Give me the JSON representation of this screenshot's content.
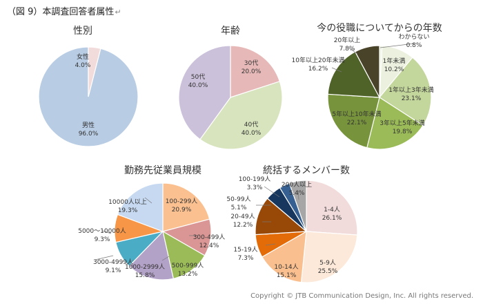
{
  "header": {
    "title": "（図 9）本調査回答者属性",
    "return_mark": "↵"
  },
  "footer": {
    "copyright": "Copyright © JTB Communication Design, Inc. All rights reserved."
  },
  "chart_data": [
    {
      "id": "gender",
      "type": "pie",
      "title": "性別",
      "slices": [
        {
          "label": "男性",
          "value": 96.0,
          "display": "96.0%",
          "color": "#b8cce4"
        },
        {
          "label": "女性",
          "value": 4.0,
          "display": "4.0%",
          "color": "#f2dcdb"
        }
      ]
    },
    {
      "id": "age",
      "type": "pie",
      "title": "年齢",
      "slices": [
        {
          "label": "30代",
          "value": 20.0,
          "display": "20.0%",
          "color": "#e6b9b8"
        },
        {
          "label": "40代",
          "value": 40.0,
          "display": "40.0%",
          "color": "#d7e4bd"
        },
        {
          "label": "50代",
          "value": 40.0,
          "display": "40.0%",
          "color": "#ccc1da"
        }
      ]
    },
    {
      "id": "tenure",
      "type": "pie",
      "title": "今の役職についてからの年数",
      "slices": [
        {
          "label": "わからない",
          "value": 0.8,
          "display": "0.8%",
          "color": "#ebf1de"
        },
        {
          "label": "1年未満",
          "value": 10.2,
          "display": "10.2%",
          "color": "#ebf1de"
        },
        {
          "label": "1年以上3年未満",
          "value": 23.1,
          "display": "23.1%",
          "color": "#c3d69b"
        },
        {
          "label": "3年以上5年未満",
          "value": 19.8,
          "display": "19.8%",
          "color": "#9bbb59"
        },
        {
          "label": "5年以上10年未満",
          "value": 22.1,
          "display": "22.1%",
          "color": "#77933c"
        },
        {
          "label": "10年以上20年未満",
          "value": 16.2,
          "display": "16.2%",
          "color": "#4f6228"
        },
        {
          "label": "20年以上",
          "value": 7.8,
          "display": "7.8%",
          "color": "#494429"
        }
      ]
    },
    {
      "id": "company_size",
      "type": "pie",
      "title": "勤務先従業員規模",
      "slices": [
        {
          "label": "100-299人",
          "value": 20.9,
          "display": "20.9%",
          "color": "#fac090"
        },
        {
          "label": "300-499人",
          "value": 12.4,
          "display": "12.4%",
          "color": "#d99694"
        },
        {
          "label": "500-999人",
          "value": 13.2,
          "display": "13.2%",
          "color": "#9bbb59"
        },
        {
          "label": "1000-2999人",
          "value": 15.8,
          "display": "15.8%",
          "color": "#b3a2c7"
        },
        {
          "label": "3000-4999人",
          "value": 9.1,
          "display": "9.1%",
          "color": "#4bacc6"
        },
        {
          "label": "5000～10000人",
          "value": 9.3,
          "display": "9.3%",
          "color": "#f79646"
        },
        {
          "label": "10000人以上",
          "value": 19.3,
          "display": "19.3%",
          "color": "#c6d9f1"
        }
      ]
    },
    {
      "id": "members",
      "type": "pie",
      "title": "統括するメンバー数",
      "slices": [
        {
          "label": "1-4人",
          "value": 26.1,
          "display": "26.1%",
          "color": "#f2dcdb"
        },
        {
          "label": "5-9人",
          "value": 25.5,
          "display": "25.5%",
          "color": "#fde9d9"
        },
        {
          "label": "10-14人",
          "value": 15.1,
          "display": "15.1%",
          "color": "#fabf8f"
        },
        {
          "label": "15-19人",
          "value": 7.3,
          "display": "7.3%",
          "color": "#e36c09"
        },
        {
          "label": "20-49人",
          "value": 12.2,
          "display": "12.2%",
          "color": "#984807"
        },
        {
          "label": "50-99人",
          "value": 5.1,
          "display": "5.1%",
          "color": "#17375e"
        },
        {
          "label": "100-199人",
          "value": 3.3,
          "display": "3.3%",
          "color": "#376092"
        },
        {
          "label": "200人以上",
          "value": 5.4,
          "display": "5.4%",
          "color": "#a6a6a6"
        }
      ]
    }
  ]
}
